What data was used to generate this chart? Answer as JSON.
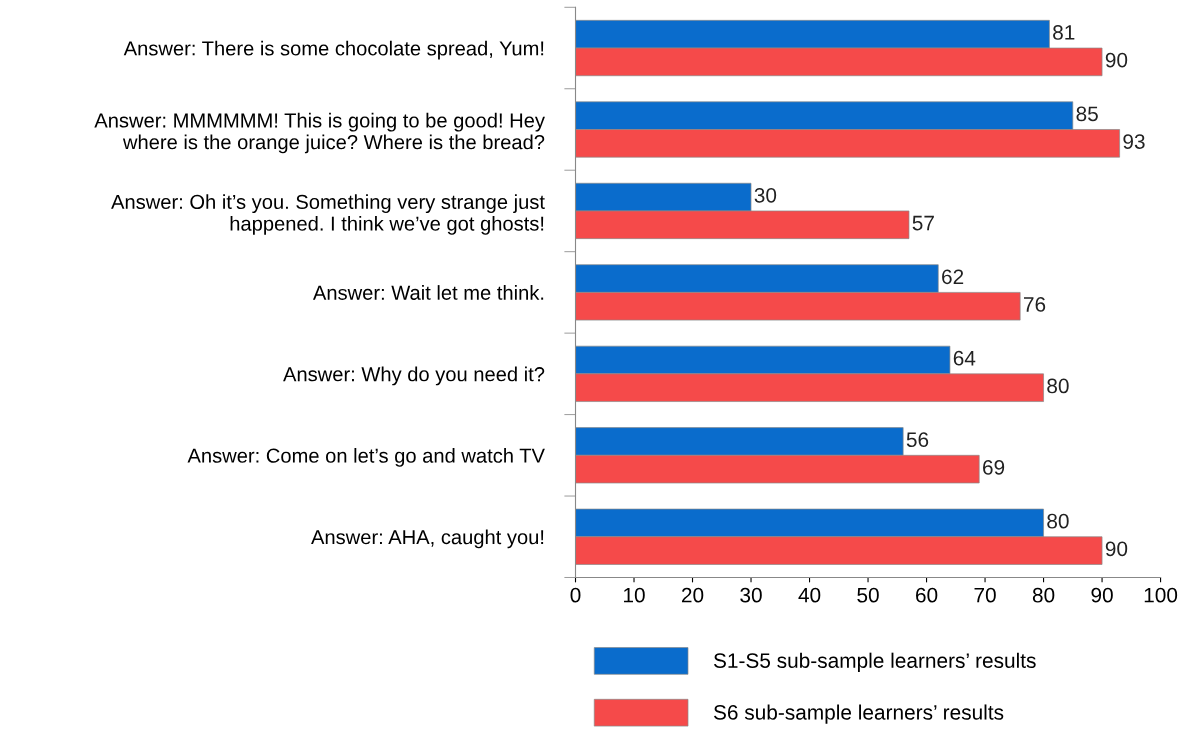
{
  "chart_data": {
    "type": "bar",
    "orientation": "horizontal",
    "categories": [
      "Answer: There is some chocolate spread, Yum!",
      "Answer: MMMMMM! This is going to be good! Hey\nwhere is the orange juice? Where is the bread?",
      "Answer: Oh it’s you. Something very strange just\nhappened. I think we’ve got ghosts!",
      "Answer: Wait let me think.",
      "Answer: Why do you need it?",
      "Answer: Come on let’s go and watch TV",
      "Answer: AHA, caught you!"
    ],
    "series": [
      {
        "name": "S1-S5 sub-sample learners’ results",
        "color": "#0a6ccc",
        "values": [
          81,
          85,
          30,
          62,
          64,
          56,
          80
        ]
      },
      {
        "name": "S6 sub-sample learners’ results",
        "color": "#f54a4a",
        "values": [
          90,
          93,
          57,
          76,
          80,
          69,
          90
        ]
      }
    ],
    "xlim": [
      0,
      100
    ],
    "xticks": [
      0,
      10,
      20,
      30,
      40,
      50,
      60,
      70,
      80,
      90,
      100
    ],
    "data_labels": true,
    "grid": false,
    "legend": "bottom"
  }
}
